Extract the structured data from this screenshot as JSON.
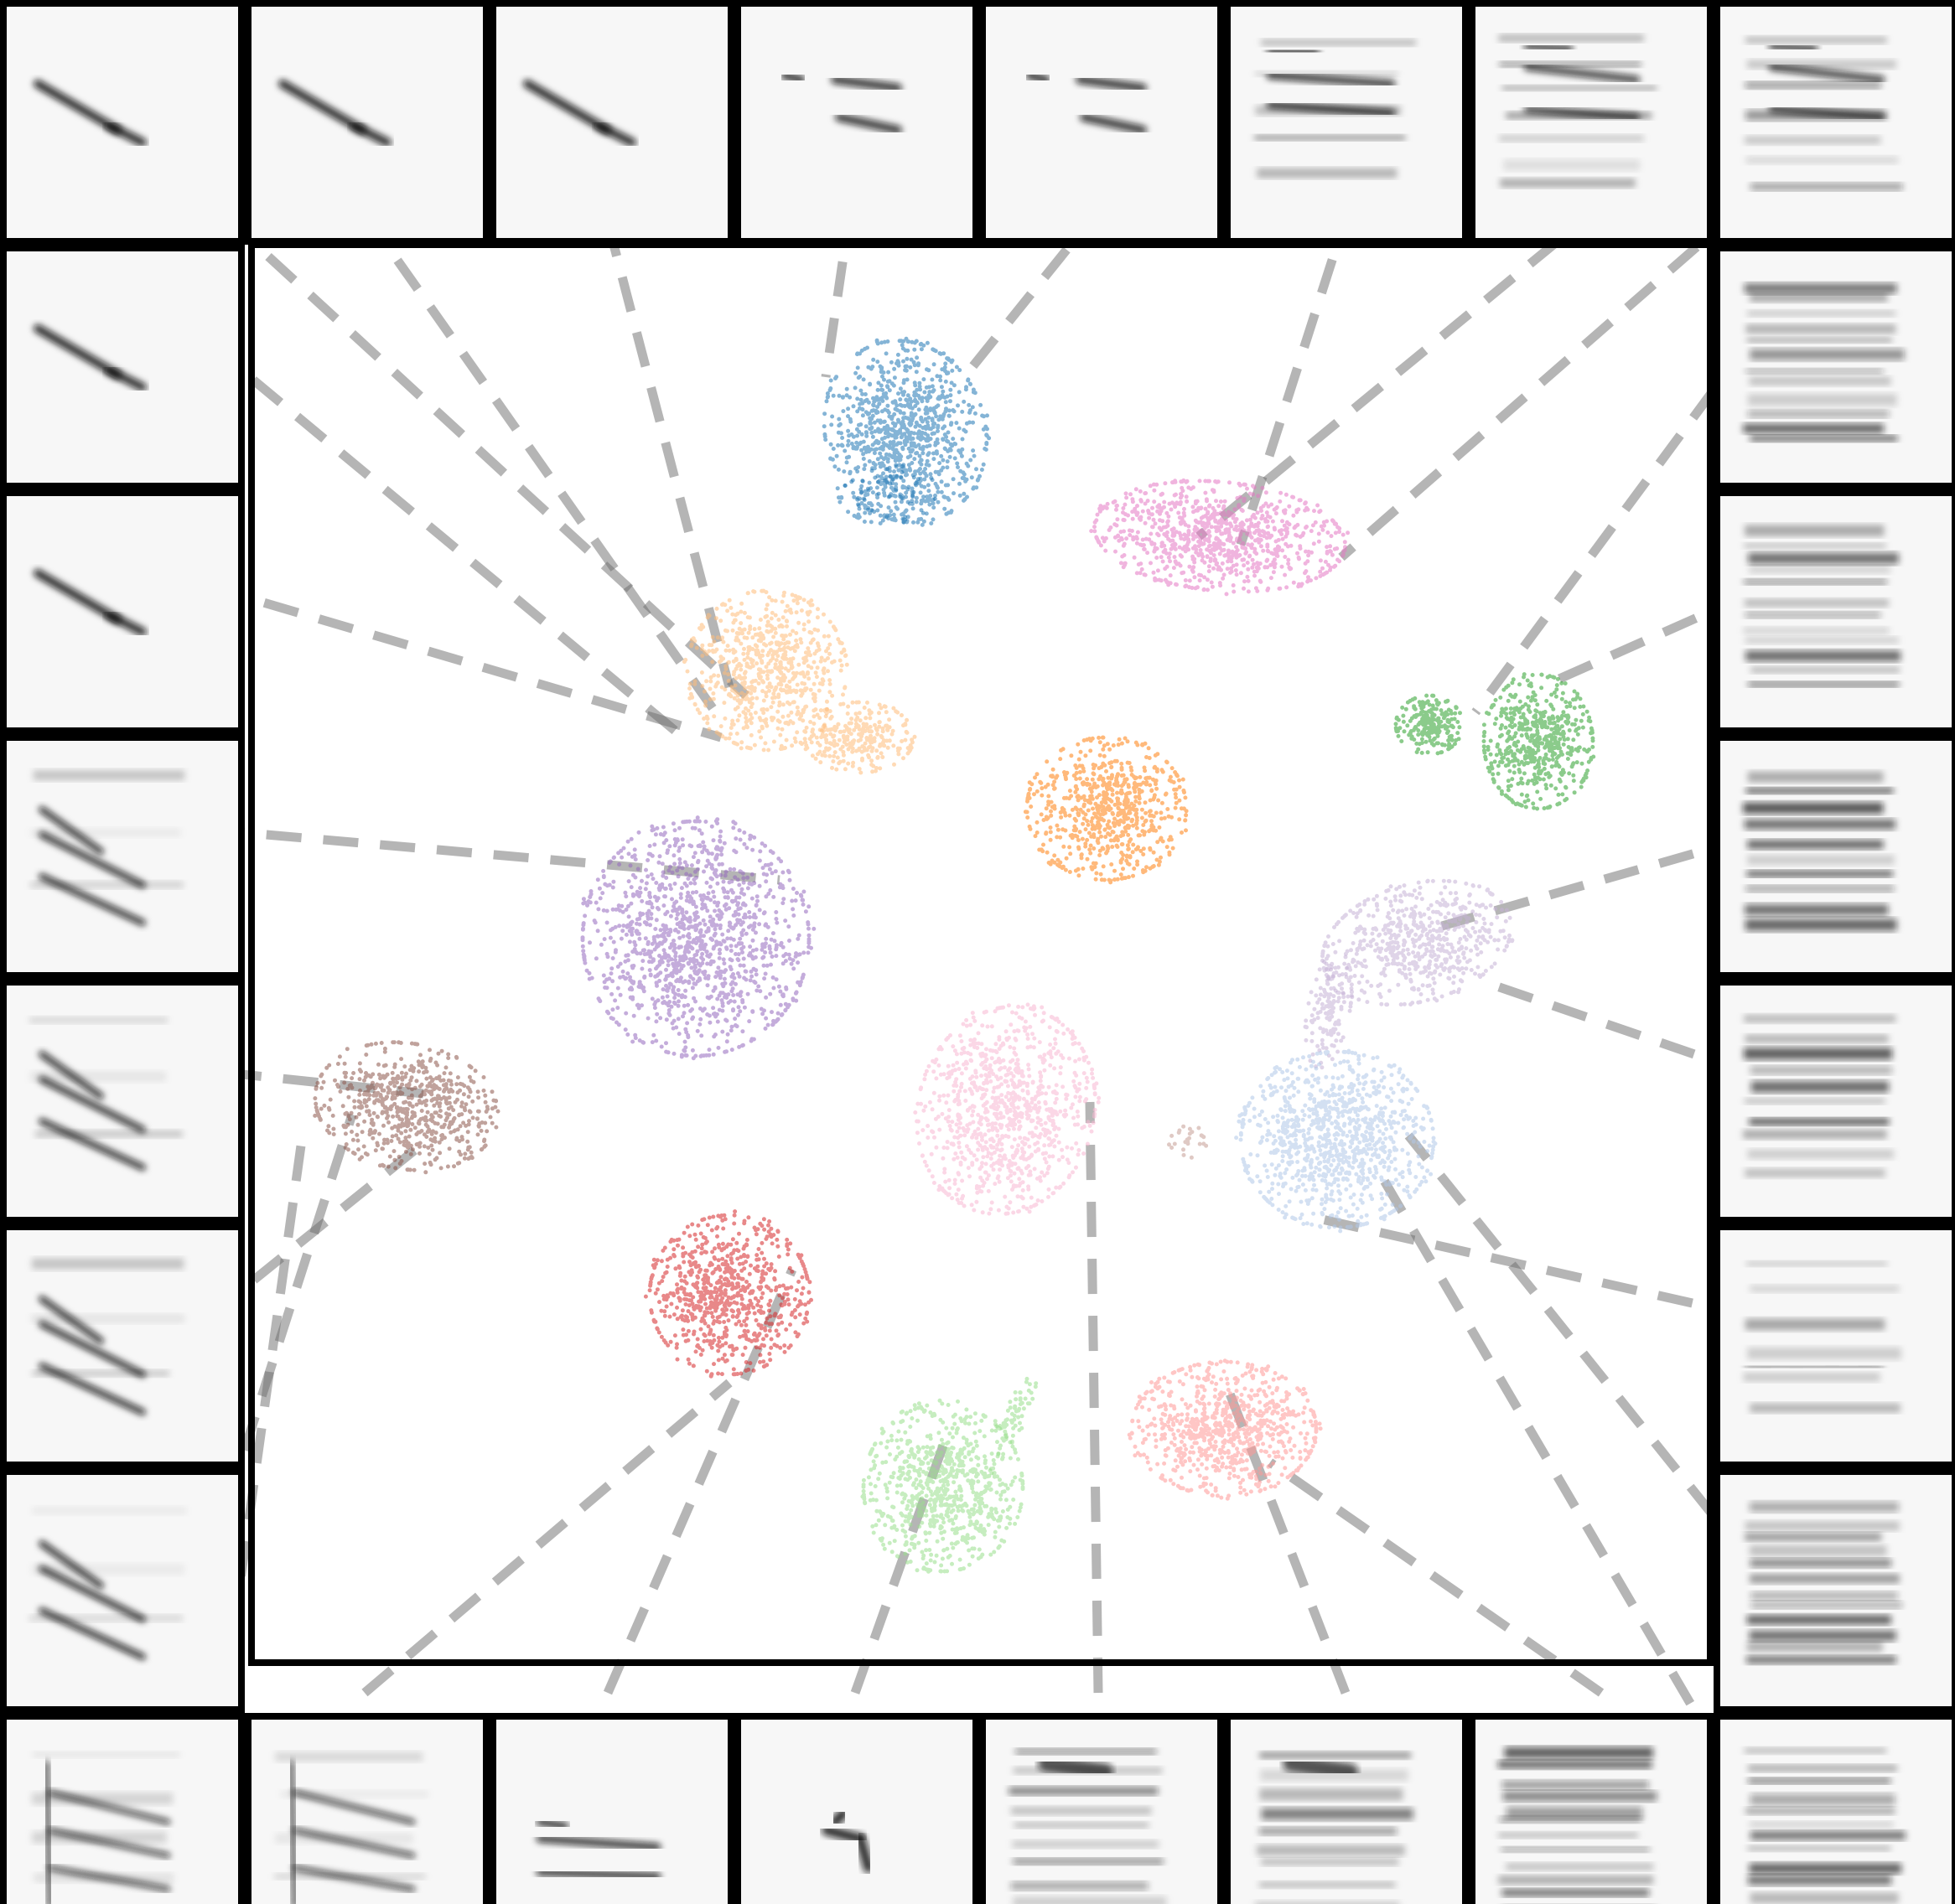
{
  "chart_data": {
    "type": "scatter",
    "title": "",
    "xlabel": "",
    "ylabel": "",
    "grid": false,
    "legend": "none",
    "clusters": [
      {
        "id": "blue",
        "color": "#1f77b4"
      },
      {
        "id": "pink-magenta",
        "color": "#e377c2"
      },
      {
        "id": "peach",
        "color": "#ffbb78"
      },
      {
        "id": "orange",
        "color": "#ff7f0e"
      },
      {
        "id": "green",
        "color": "#2ca02c"
      },
      {
        "id": "purple",
        "color": "#9467bd"
      },
      {
        "id": "lavender",
        "color": "#c5b0d5"
      },
      {
        "id": "brown",
        "color": "#8c564b"
      },
      {
        "id": "light-pink",
        "color": "#f7b6d2"
      },
      {
        "id": "light-blue",
        "color": "#aec7e8"
      },
      {
        "id": "red",
        "color": "#d62728"
      },
      {
        "id": "light-green",
        "color": "#98df8a"
      },
      {
        "id": "salmon",
        "color": "#ff9896"
      },
      {
        "id": "tan",
        "color": "#c49c94"
      }
    ],
    "spectrogram_thumbnails": {
      "top": [
        "diagonal-downsweep",
        "diagonal-downsweep",
        "diagonal-downsweep",
        "two-harmonic-short",
        "two-harmonic-short",
        "three-band-flat",
        "stacked-flat",
        "stacked-flat"
      ],
      "left": [
        "diagonal-downsweep",
        "diagonal-downsweep",
        "harmonic-downsweep",
        "harmonic-downsweep",
        "harmonic-downsweep",
        "harmonic-downsweep",
        "harmonic-downsweep"
      ],
      "right": [
        "noisy-broadband",
        "noisy-broadband",
        "dense-harmonic",
        "dense-harmonic",
        "faint-harmonic",
        "noisy-broadband",
        "noisy-broadband"
      ],
      "bottom": [
        "harmonic-stack",
        "harmonic-stack",
        "two-band-flat",
        "short-hook",
        "low-harmonic-blob",
        "low-harmonic-blob",
        "noisy-broadband"
      ]
    }
  }
}
